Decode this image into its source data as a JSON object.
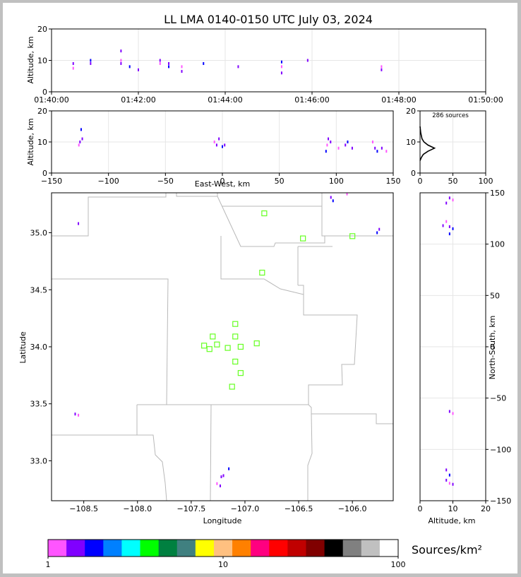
{
  "chart_data": {
    "type": "scatter",
    "title": "LL LMA 0140-0150 UTC July 03, 2024",
    "colorbar": {
      "label": "Sources/km²",
      "scale": "log",
      "range": [
        1,
        100
      ],
      "ticks": [
        "1",
        "10",
        "100"
      ],
      "colors": [
        "#ff55ff",
        "#8000ff",
        "#0000ff",
        "#0080ff",
        "#00ffff",
        "#00ff00",
        "#008040",
        "#408080",
        "#ffff00",
        "#ffc080",
        "#ff8000",
        "#ff0080",
        "#ff0000",
        "#c00000",
        "#800000",
        "#000000",
        "#808080",
        "#c0c0c0",
        "#ffffff"
      ]
    },
    "panels": {
      "time_height": {
        "ylabel": "Altitude, km",
        "ylim": [
          0,
          20
        ],
        "yticks": [
          "0",
          "10",
          "20"
        ],
        "xlim_minutes": [
          40,
          50
        ],
        "xticks": [
          "01:40:00",
          "01:42:00",
          "01:44:00",
          "01:46:00",
          "01:48:00",
          "01:50:00"
        ],
        "points": [
          [
            40.5,
            9
          ],
          [
            40.5,
            7.5
          ],
          [
            40.9,
            9
          ],
          [
            40.9,
            10
          ],
          [
            41.6,
            9
          ],
          [
            41.6,
            10
          ],
          [
            41.6,
            13
          ],
          [
            41.8,
            8
          ],
          [
            42.0,
            7
          ],
          [
            42.5,
            9
          ],
          [
            42.5,
            10
          ],
          [
            42.7,
            8
          ],
          [
            42.7,
            9
          ],
          [
            43.0,
            8
          ],
          [
            43.0,
            6.5
          ],
          [
            43.5,
            9
          ],
          [
            44.3,
            8
          ],
          [
            45.3,
            8
          ],
          [
            45.3,
            6
          ],
          [
            45.3,
            9.5
          ],
          [
            45.9,
            10
          ],
          [
            47.6,
            8
          ],
          [
            47.6,
            7
          ]
        ]
      },
      "ew_height": {
        "xlabel": "East-West, km",
        "ylabel": "Altitude, km",
        "xlim": [
          -150,
          150
        ],
        "ylim": [
          0,
          20
        ],
        "xticks": [
          "−150",
          "−100",
          "−50",
          "0",
          "50",
          "100",
          "150"
        ],
        "yticks": [
          "0",
          "10",
          "20"
        ],
        "points": [
          [
            -125,
            10
          ],
          [
            -126,
            9
          ],
          [
            -123,
            11
          ],
          [
            -124,
            14
          ],
          [
            -5,
            9
          ],
          [
            -7,
            10
          ],
          [
            -3,
            11
          ],
          [
            0,
            8.5
          ],
          [
            2,
            9
          ],
          [
            92,
            9
          ],
          [
            93,
            11
          ],
          [
            91,
            7
          ],
          [
            95,
            10
          ],
          [
            102,
            8
          ],
          [
            108,
            9
          ],
          [
            110,
            10
          ],
          [
            114,
            8
          ],
          [
            132,
            10
          ],
          [
            134,
            8
          ],
          [
            136,
            7
          ],
          [
            140,
            8
          ],
          [
            144,
            7
          ]
        ]
      },
      "height_hist": {
        "annotation": "286 sources",
        "xlim": [
          0,
          100
        ],
        "ylim": [
          0,
          20
        ],
        "xticks": [
          "0",
          "50",
          "100"
        ],
        "yticks": [
          "0",
          "10",
          "20"
        ],
        "counts": [
          [
            5,
            2
          ],
          [
            6,
            5
          ],
          [
            7,
            12
          ],
          [
            8,
            22
          ],
          [
            9,
            12
          ],
          [
            10,
            6
          ],
          [
            11,
            3
          ],
          [
            12,
            2
          ],
          [
            13,
            1
          ]
        ]
      },
      "plan_view": {
        "xlabel": "Longitude",
        "ylabel": "Latitude",
        "xlim": [
          -108.8,
          -105.62
        ],
        "ylim": [
          32.65,
          35.35
        ],
        "xticks": [
          "−108.5",
          "−108.0",
          "−107.5",
          "−107.0",
          "−106.5",
          "−106.0"
        ],
        "yticks": [
          "33.0",
          "33.5",
          "34.0",
          "34.5",
          "35.0"
        ],
        "stations": [
          [
            -106.82,
            35.17
          ],
          [
            -106.46,
            34.95
          ],
          [
            -106.0,
            34.97
          ],
          [
            -106.84,
            34.65
          ],
          [
            -107.09,
            34.2
          ],
          [
            -107.3,
            34.09
          ],
          [
            -107.09,
            34.09
          ],
          [
            -107.38,
            34.01
          ],
          [
            -107.26,
            34.02
          ],
          [
            -107.33,
            33.98
          ],
          [
            -107.16,
            33.99
          ],
          [
            -107.04,
            34.0
          ],
          [
            -106.89,
            34.03
          ],
          [
            -107.09,
            33.87
          ],
          [
            -107.04,
            33.77
          ],
          [
            -107.12,
            33.65
          ]
        ],
        "sources": [
          [
            -108.55,
            35.08
          ],
          [
            -108.55,
            33.4
          ],
          [
            -108.58,
            33.41
          ],
          [
            -106.18,
            35.28
          ],
          [
            -106.2,
            35.31
          ],
          [
            -106.05,
            35.34
          ],
          [
            -105.75,
            35.03
          ],
          [
            -105.77,
            35.0
          ],
          [
            -107.23,
            32.78
          ],
          [
            -107.26,
            32.8
          ],
          [
            -107.2,
            32.87
          ],
          [
            -107.15,
            32.93
          ],
          [
            -107.22,
            32.86
          ]
        ]
      },
      "ns_height": {
        "xlabel": "Altitude, km",
        "ylabel": "North-South, km",
        "xlim": [
          0,
          20
        ],
        "ylim": [
          -150,
          150
        ],
        "xticks": [
          "0",
          "10",
          "20"
        ],
        "yticks": [
          "−150",
          "−100",
          "−50",
          "0",
          "50",
          "100",
          "150"
        ],
        "points": [
          [
            9,
            145
          ],
          [
            10,
            143
          ],
          [
            8,
            140
          ],
          [
            10,
            115
          ],
          [
            9,
            117
          ],
          [
            8,
            122
          ],
          [
            7,
            118
          ],
          [
            9,
            110
          ],
          [
            9,
            -63
          ],
          [
            10,
            -65
          ],
          [
            8,
            -120
          ],
          [
            9,
            -125
          ],
          [
            8,
            -130
          ],
          [
            9,
            -133
          ],
          [
            10,
            -134
          ]
        ]
      }
    }
  }
}
